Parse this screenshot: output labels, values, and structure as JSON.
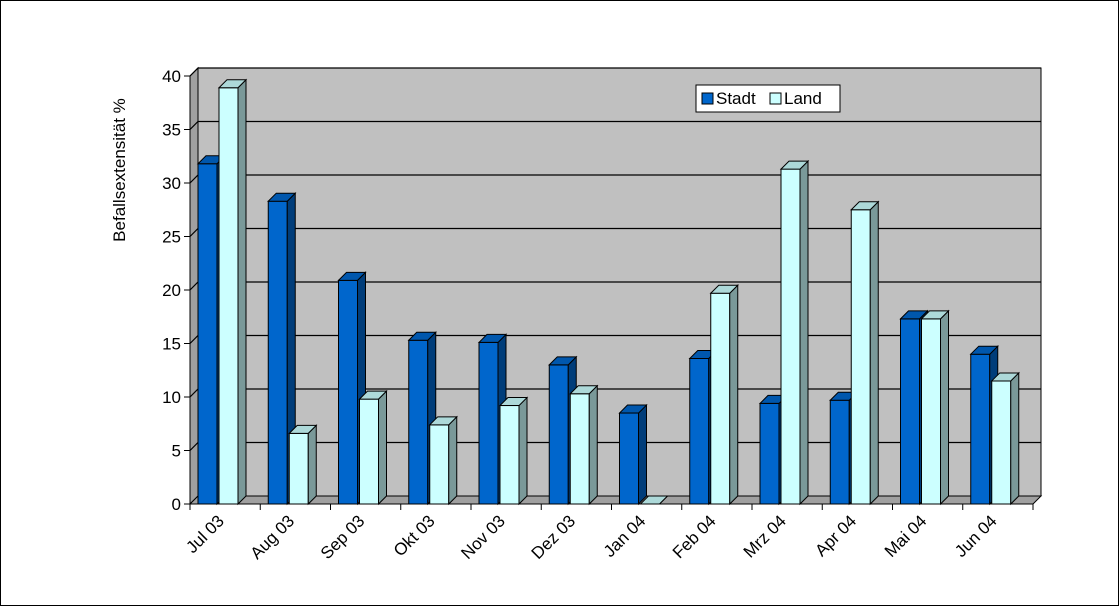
{
  "chart_data": {
    "type": "bar",
    "ylabel": "Befallsextensität %",
    "categories": [
      "Jul 03",
      "Aug 03",
      "Sep 03",
      "Okt 03",
      "Nov 03",
      "Dez 03",
      "Jan 04",
      "Feb 04",
      "Mrz 04",
      "Apr 04",
      "Mai 04",
      "Jun 04"
    ],
    "series": [
      {
        "name": "Stadt",
        "color": "#0066CC",
        "values": [
          31.8,
          28.3,
          20.9,
          15.3,
          15.1,
          13.0,
          8.5,
          13.6,
          9.4,
          9.7,
          17.3,
          14.0
        ]
      },
      {
        "name": "Land",
        "color": "#CCFFFF",
        "values": [
          38.9,
          6.6,
          9.8,
          7.4,
          9.2,
          10.3,
          0.0,
          19.7,
          31.3,
          27.5,
          17.3,
          11.5
        ]
      }
    ],
    "ylim": [
      0,
      40
    ],
    "yticks": [
      0,
      5,
      10,
      15,
      20,
      25,
      30,
      35,
      40
    ],
    "grid": true,
    "legend_position": "top-right",
    "background_color": "#C0C0C0"
  }
}
